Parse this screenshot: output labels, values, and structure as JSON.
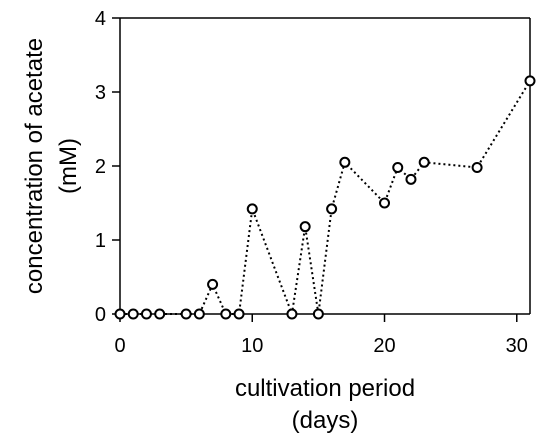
{
  "chart_data": {
    "type": "line",
    "title": "",
    "xlabel": [
      "cultivation period",
      "(days)"
    ],
    "ylabel": [
      "concentration of acetate",
      "(mM)"
    ],
    "xlim": [
      0,
      31
    ],
    "ylim": [
      0,
      4
    ],
    "xticks": [
      0,
      10,
      20,
      30
    ],
    "yticks": [
      0,
      1,
      2,
      3,
      4
    ],
    "grid": false,
    "series": [
      {
        "x": [
          0,
          1,
          2,
          3,
          5,
          6,
          7,
          8,
          9,
          10,
          13,
          14,
          15,
          16,
          17,
          20,
          21,
          22,
          23,
          27,
          31
        ],
        "values": [
          0,
          0,
          0,
          0,
          0,
          0,
          0.4,
          0,
          0,
          1.42,
          0,
          1.18,
          0,
          1.42,
          2.05,
          1.5,
          1.98,
          1.82,
          2.05,
          1.98,
          3.15
        ],
        "marker": "open-circle",
        "line_style": "dotted",
        "color": "#000000"
      }
    ]
  }
}
